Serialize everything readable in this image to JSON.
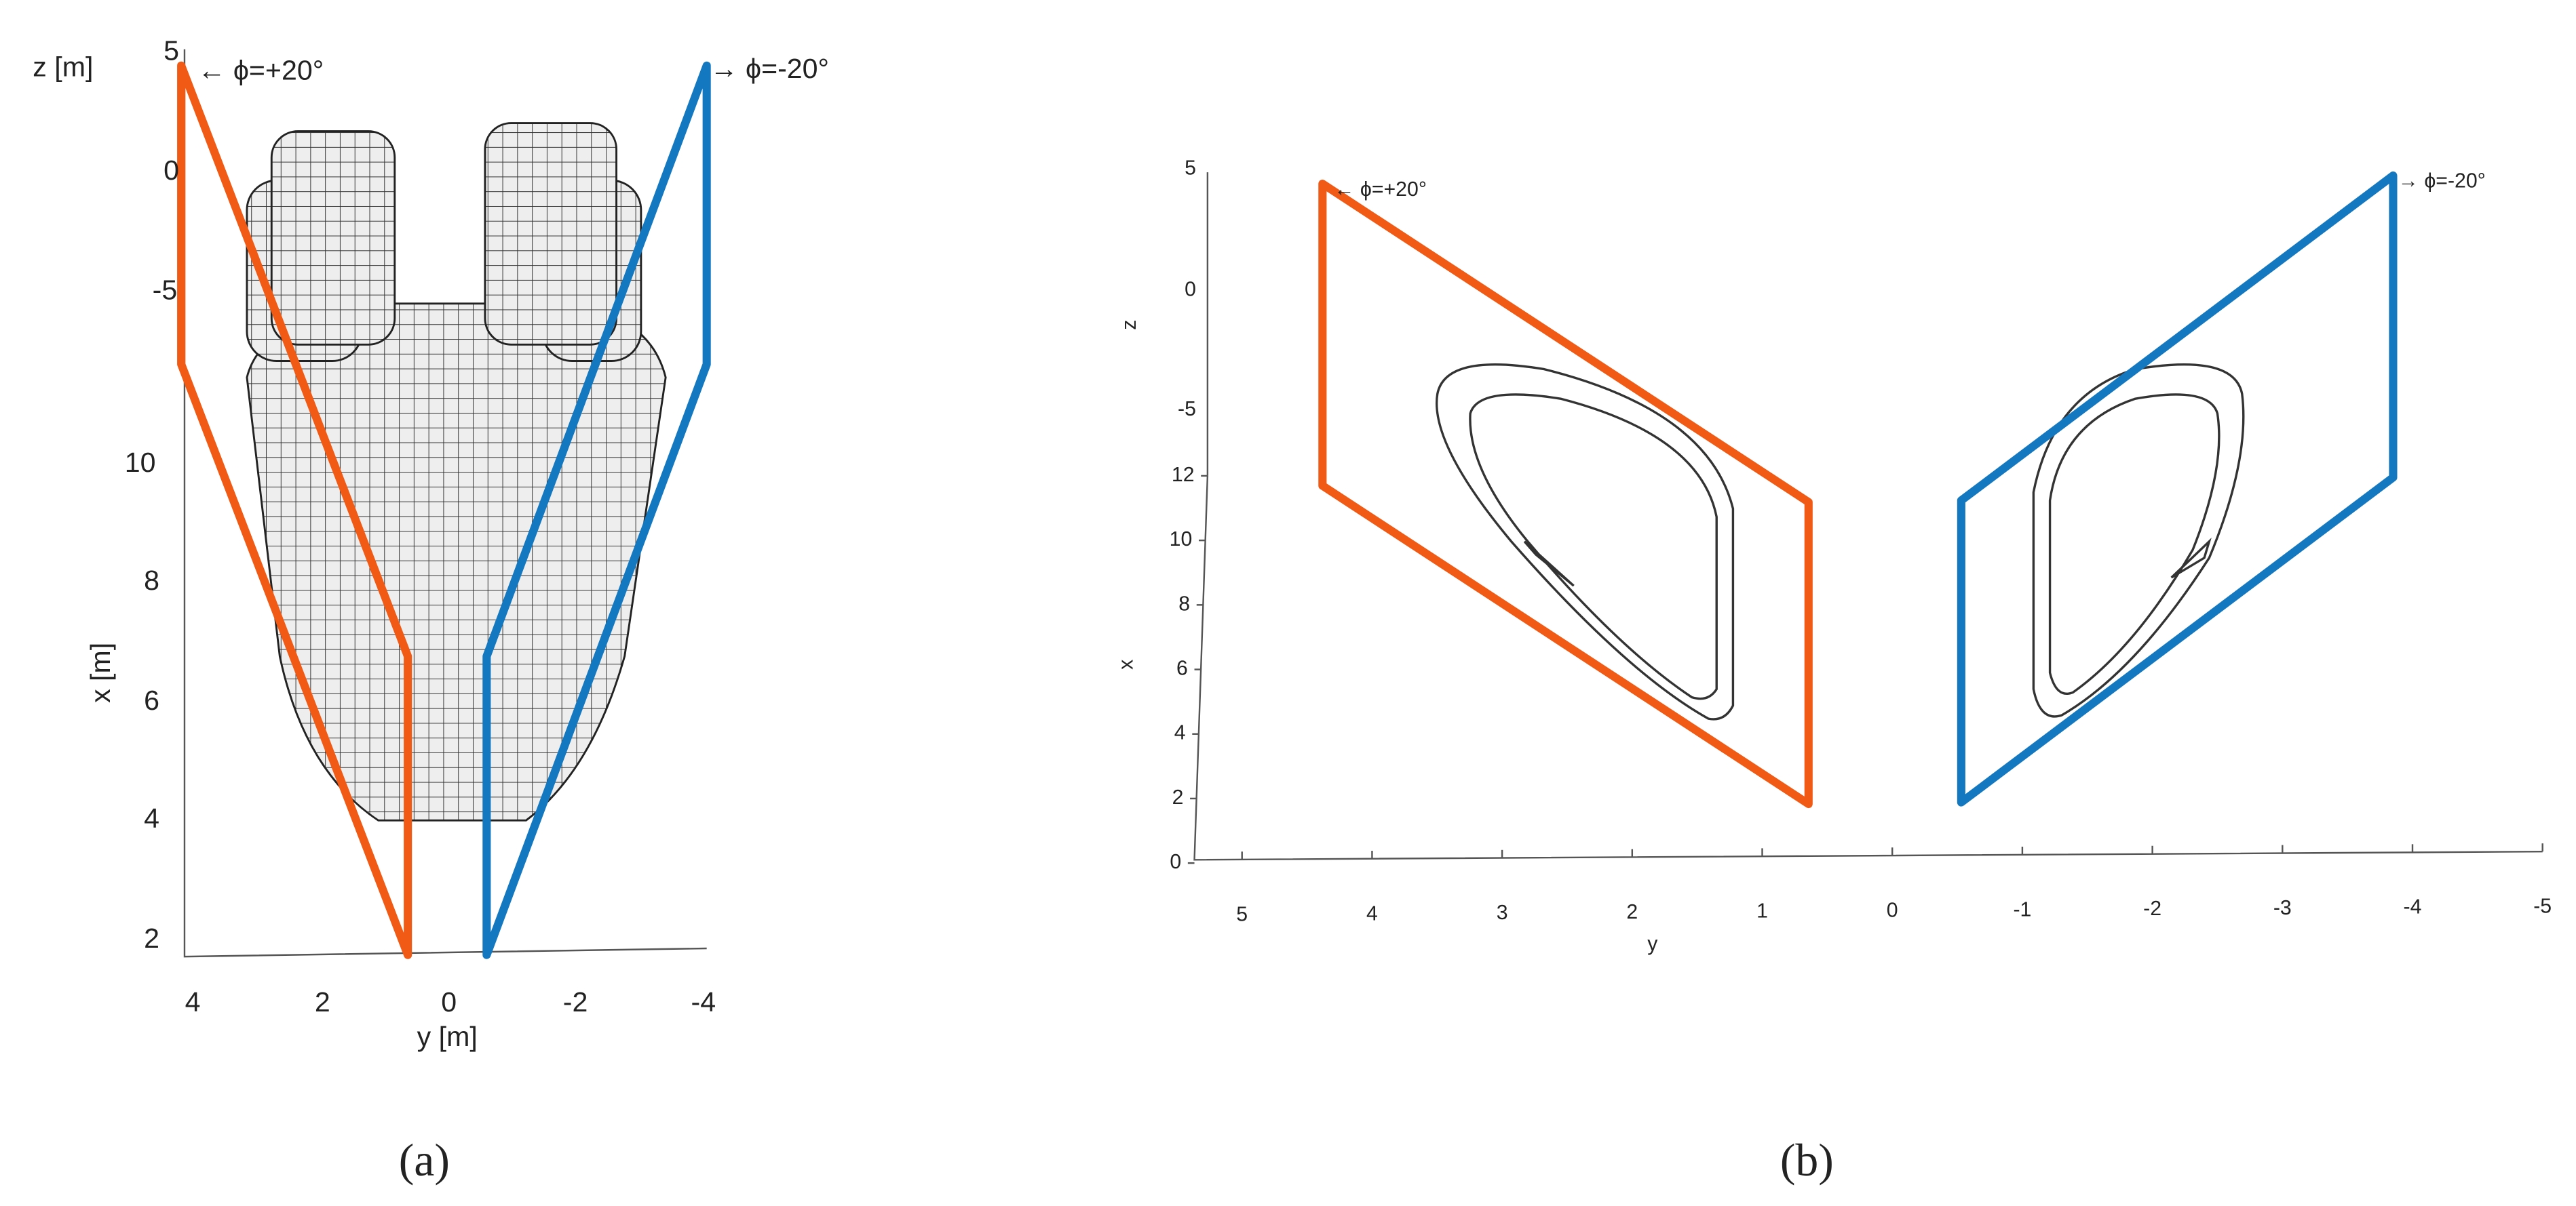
{
  "panel_a": {
    "z_axis_label": "z [m]",
    "x_axis_label": "x [m]",
    "y_axis_label": "y [m]",
    "z_ticks": [
      5,
      0,
      -5
    ],
    "x_ticks": [
      10,
      8,
      6,
      4,
      2
    ],
    "y_ticks": [
      4,
      2,
      0,
      -2,
      -4
    ],
    "plane_labels": [
      "← ϕ=+20°",
      "→ ϕ=-20°"
    ],
    "caption": "(a)"
  },
  "panel_b": {
    "z_axis_label": "z",
    "x_axis_label": "x",
    "y_axis_label": "y",
    "z_ticks": [
      5,
      0,
      -5
    ],
    "x_ticks": [
      12,
      10,
      8,
      6,
      4,
      2,
      0
    ],
    "y_ticks": [
      5,
      4,
      3,
      2,
      1,
      0,
      -1,
      -2,
      -3,
      -4,
      -5
    ],
    "plane_labels": [
      "← ϕ=+20°",
      "→ ϕ=-20°"
    ],
    "caption": "(b)"
  }
}
